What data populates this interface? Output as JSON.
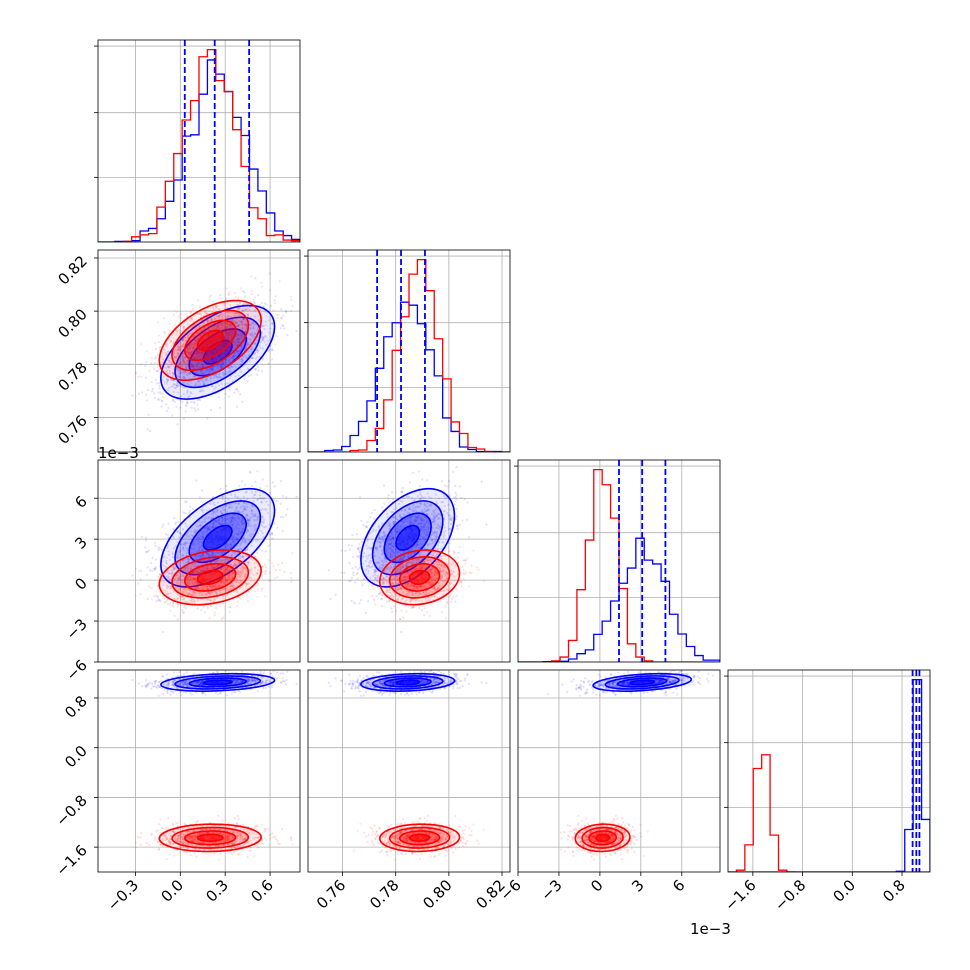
{
  "chart_data": {
    "type": "corner",
    "n_params": 4,
    "grid": true,
    "colors": {
      "series_a": "#0000ff",
      "series_b": "#ff0000"
    },
    "axes": [
      {
        "range": [
          -0.55,
          0.8
        ],
        "ticks": [
          -0.3,
          0.0,
          0.3,
          0.6
        ],
        "tick_labels": [
          "−0.3",
          "0.0",
          "0.3",
          "0.6"
        ],
        "offset": ""
      },
      {
        "range": [
          0.747,
          0.823
        ],
        "ticks": [
          0.76,
          0.78,
          0.8,
          0.82
        ],
        "tick_labels": [
          "0.76",
          "0.78",
          "0.80",
          "0.82"
        ],
        "offset": ""
      },
      {
        "range": [
          -6.0,
          8.8
        ],
        "ticks": [
          -6,
          -3,
          0,
          3,
          6
        ],
        "tick_labels": [
          "−6",
          "−3",
          "0",
          "3",
          "6"
        ],
        "offset": "1e−3"
      },
      {
        "range": [
          -2.0,
          1.25
        ],
        "ticks": [
          -1.6,
          -0.8,
          0.0,
          0.8
        ],
        "tick_labels": [
          "−1.6",
          "−0.8",
          "0.0",
          "0.8"
        ],
        "offset": ""
      }
    ],
    "series": [
      {
        "color": "#0000ff",
        "mean": [
          0.25,
          0.7845,
          3.1,
          1.05
        ],
        "std": [
          0.19,
          0.0088,
          1.8,
          0.07
        ],
        "corr": [
          [
            1,
            0.55,
            0.55,
            0.25
          ],
          [
            0.55,
            1,
            0.45,
            0.2
          ],
          [
            0.55,
            0.45,
            1,
            0.35
          ],
          [
            0.25,
            0.2,
            0.35,
            1
          ]
        ],
        "quantiles": [
          [
            0.03,
            0.23,
            0.46
          ],
          [
            0.773,
            0.782,
            0.791
          ],
          [
            1.4,
            3.1,
            4.8
          ],
          [
            0.97,
            1.03,
            1.08
          ]
        ]
      },
      {
        "color": "#ff0000",
        "mean": [
          0.2,
          0.789,
          0.2,
          -1.45
        ],
        "std": [
          0.17,
          0.0075,
          1.0,
          0.11
        ],
        "corr": [
          [
            1,
            0.5,
            0.25,
            0.05
          ],
          [
            0.5,
            1,
            0.15,
            0.05
          ],
          [
            0.25,
            0.15,
            1,
            0.05
          ],
          [
            0.05,
            0.05,
            0.05,
            1
          ]
        ],
        "quantiles": []
      }
    ]
  }
}
